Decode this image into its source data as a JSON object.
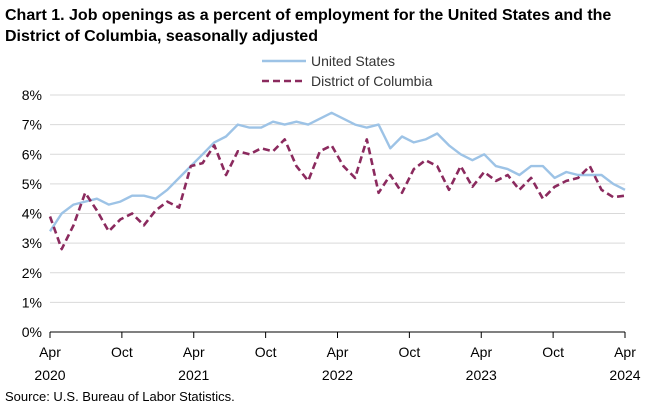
{
  "chart_data": {
    "type": "line",
    "title": "Chart 1. Job openings as a percent of employment for the United States and the District of Columbia, seasonally adjusted",
    "source": "Source: U.S. Bureau of Labor Statistics.",
    "ylim": [
      0,
      8
    ],
    "y_ticks": [
      "0%",
      "1%",
      "2%",
      "3%",
      "4%",
      "5%",
      "6%",
      "7%",
      "8%"
    ],
    "x_ticks": [
      {
        "month": "Apr",
        "year": "2020"
      },
      {
        "month": "Oct",
        "year": ""
      },
      {
        "month": "Apr",
        "year": "2021"
      },
      {
        "month": "Oct",
        "year": ""
      },
      {
        "month": "Apr",
        "year": "2022"
      },
      {
        "month": "Oct",
        "year": ""
      },
      {
        "month": "Apr",
        "year": "2023"
      },
      {
        "month": "Oct",
        "year": ""
      },
      {
        "month": "Apr",
        "year": "2024"
      }
    ],
    "x_start": "Apr 2020",
    "x_end": "Apr 2024",
    "series": [
      {
        "name": "United States",
        "color": "#9dc3e6",
        "style": "solid",
        "values": [
          3.4,
          4.0,
          4.3,
          4.4,
          4.5,
          4.3,
          4.4,
          4.6,
          4.6,
          4.5,
          4.8,
          5.2,
          5.6,
          6.0,
          6.4,
          6.6,
          7.0,
          6.9,
          6.9,
          7.1,
          7.0,
          7.1,
          7.0,
          7.2,
          7.4,
          7.2,
          7.0,
          6.9,
          7.0,
          6.2,
          6.6,
          6.4,
          6.5,
          6.7,
          6.3,
          6.0,
          5.8,
          6.0,
          5.6,
          5.5,
          5.3,
          5.6,
          5.6,
          5.2,
          5.4,
          5.3,
          5.3,
          5.3,
          5.0,
          4.8
        ]
      },
      {
        "name": "District of Columbia",
        "color": "#8b2a5e",
        "style": "dashed",
        "values": [
          3.9,
          2.8,
          3.6,
          4.7,
          4.1,
          3.4,
          3.8,
          4.0,
          3.6,
          4.1,
          4.4,
          4.2,
          5.6,
          5.7,
          6.3,
          5.3,
          6.1,
          6.0,
          6.2,
          6.1,
          6.5,
          5.6,
          5.1,
          6.1,
          6.3,
          5.6,
          5.2,
          6.5,
          4.7,
          5.3,
          4.7,
          5.5,
          5.8,
          5.6,
          4.8,
          5.6,
          4.9,
          5.4,
          5.1,
          5.3,
          4.8,
          5.2,
          4.5,
          4.9,
          5.1,
          5.2,
          5.6,
          4.8,
          4.55,
          4.6
        ]
      }
    ]
  }
}
